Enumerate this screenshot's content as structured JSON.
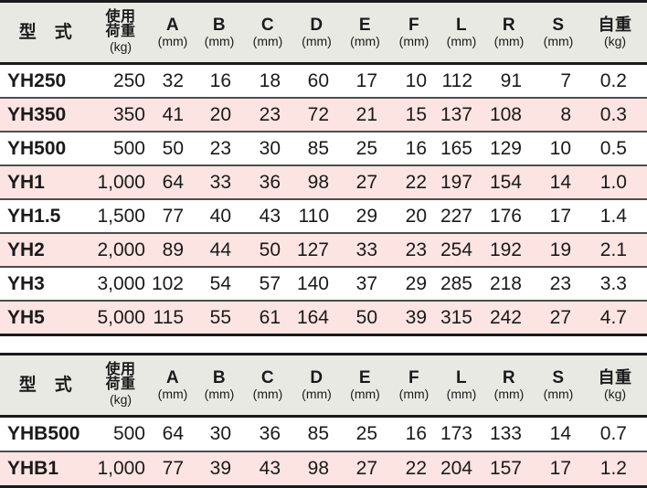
{
  "colors": {
    "header_bg": "#e9e9e4",
    "row_alt_pink": "#fbe4e1",
    "row_white": "#ffffff",
    "border_heavy": "#1a1a1a",
    "border_row": "#4d4d4d",
    "text": "#1a1a1a"
  },
  "columns": [
    {
      "id": "model",
      "label_lines": [
        "型　式"
      ],
      "unit": ""
    },
    {
      "id": "load",
      "label_lines": [
        "使用",
        "荷重"
      ],
      "unit": "(kg)"
    },
    {
      "id": "a",
      "label_lines": [
        "A"
      ],
      "unit": "(mm)"
    },
    {
      "id": "b",
      "label_lines": [
        "B"
      ],
      "unit": "(mm)"
    },
    {
      "id": "c",
      "label_lines": [
        "C"
      ],
      "unit": "(mm)"
    },
    {
      "id": "d",
      "label_lines": [
        "D"
      ],
      "unit": "(mm)"
    },
    {
      "id": "e",
      "label_lines": [
        "E"
      ],
      "unit": "(mm)"
    },
    {
      "id": "f",
      "label_lines": [
        "F"
      ],
      "unit": "(mm)"
    },
    {
      "id": "l",
      "label_lines": [
        "L"
      ],
      "unit": "(mm)"
    },
    {
      "id": "r",
      "label_lines": [
        "R"
      ],
      "unit": "(mm)"
    },
    {
      "id": "s",
      "label_lines": [
        "S"
      ],
      "unit": "(mm)"
    },
    {
      "id": "weight",
      "label_lines": [
        "自重"
      ],
      "unit": "(kg)"
    }
  ],
  "tables": [
    {
      "name": "yh-series-spec-table",
      "rows": [
        {
          "model": "YH250",
          "values": [
            "250",
            "32",
            "16",
            "18",
            "60",
            "17",
            "10",
            "112",
            "91",
            "7",
            "0.2"
          ]
        },
        {
          "model": "YH350",
          "values": [
            "350",
            "41",
            "20",
            "23",
            "72",
            "21",
            "15",
            "137",
            "108",
            "8",
            "0.3"
          ]
        },
        {
          "model": "YH500",
          "values": [
            "500",
            "50",
            "23",
            "30",
            "85",
            "25",
            "16",
            "165",
            "129",
            "10",
            "0.5"
          ]
        },
        {
          "model": "YH1",
          "values": [
            "1,000",
            "64",
            "33",
            "36",
            "98",
            "27",
            "22",
            "197",
            "154",
            "14",
            "1.0"
          ]
        },
        {
          "model": "YH1.5",
          "values": [
            "1,500",
            "77",
            "40",
            "43",
            "110",
            "29",
            "20",
            "227",
            "176",
            "17",
            "1.4"
          ]
        },
        {
          "model": "YH2",
          "values": [
            "2,000",
            "89",
            "44",
            "50",
            "127",
            "33",
            "23",
            "254",
            "192",
            "19",
            "2.1"
          ]
        },
        {
          "model": "YH3",
          "values": [
            "3,000",
            "102",
            "54",
            "57",
            "140",
            "37",
            "29",
            "285",
            "218",
            "23",
            "3.3"
          ]
        },
        {
          "model": "YH5",
          "values": [
            "5,000",
            "115",
            "55",
            "61",
            "164",
            "50",
            "39",
            "315",
            "242",
            "27",
            "4.7"
          ]
        }
      ]
    },
    {
      "name": "yhb-series-spec-table",
      "rows": [
        {
          "model": "YHB500",
          "values": [
            "500",
            "64",
            "30",
            "36",
            "85",
            "25",
            "16",
            "173",
            "133",
            "14",
            "0.7"
          ]
        },
        {
          "model": "YHB1",
          "values": [
            "1,000",
            "77",
            "39",
            "43",
            "98",
            "27",
            "22",
            "204",
            "157",
            "17",
            "1.2"
          ]
        }
      ]
    }
  ]
}
